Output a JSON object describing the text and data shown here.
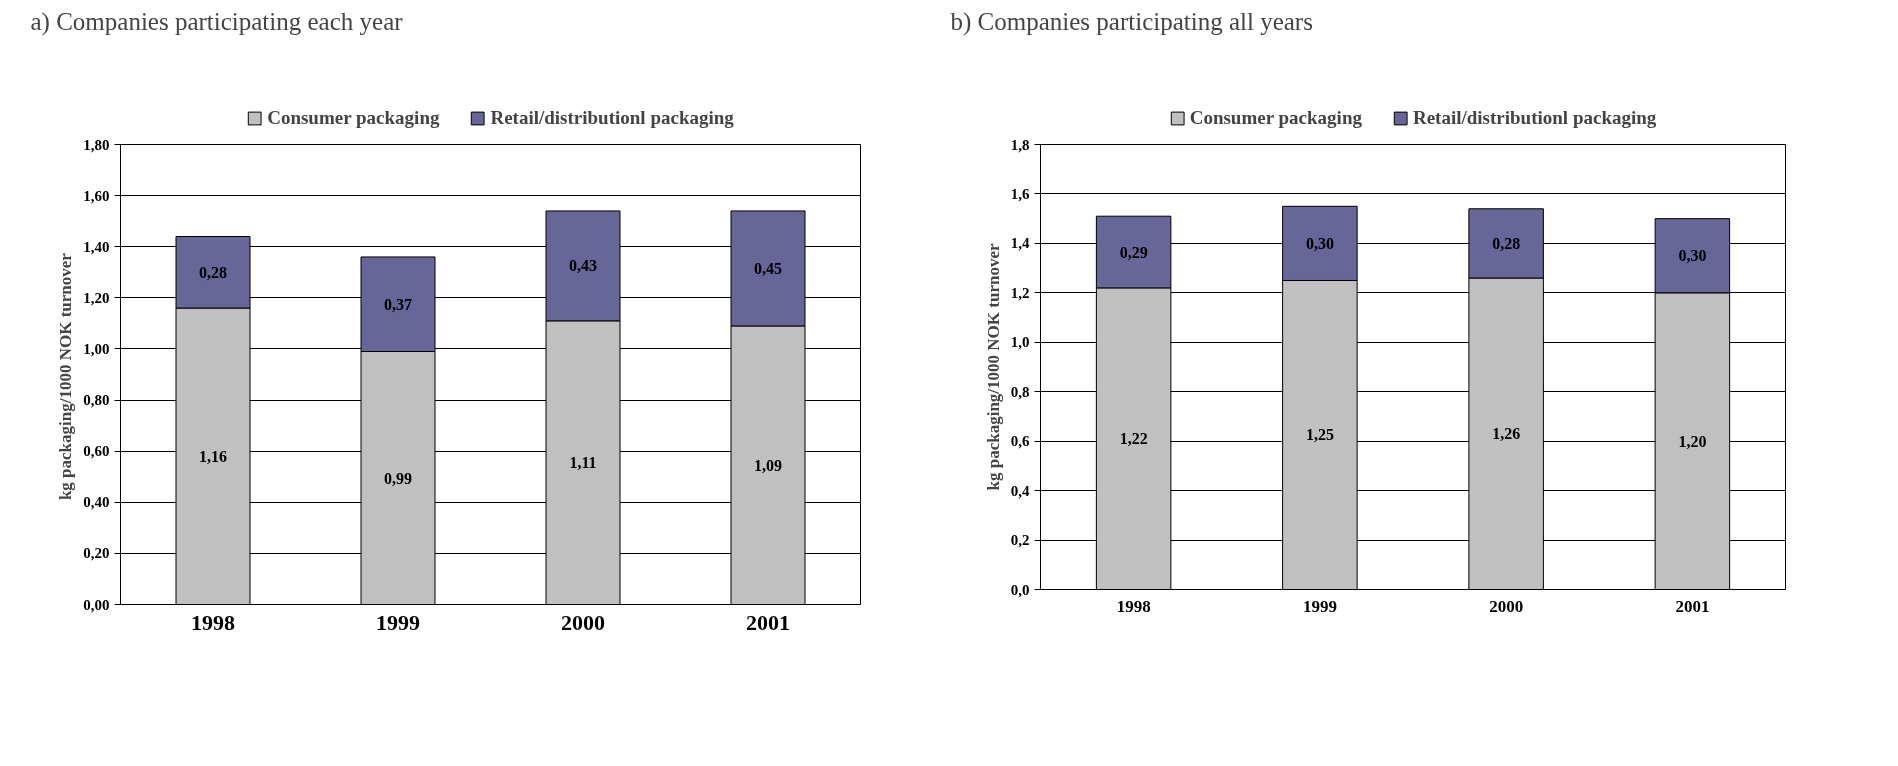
{
  "chart_data": [
    {
      "type": "bar",
      "title": "a)   Companies participating each year",
      "ylabel": "kg  packaging/1000 NOK turnover",
      "categories": [
        "1998",
        "1999",
        "2000",
        "2001"
      ],
      "stacked": true,
      "legend": "top",
      "grid": "y",
      "ylim": [
        0,
        1.8
      ],
      "yticks": [
        {
          "value": 0,
          "label": "0,00"
        },
        {
          "value": 0.2,
          "label": "0,20"
        },
        {
          "value": 0.4,
          "label": "0,40"
        },
        {
          "value": 0.6,
          "label": "0,60"
        },
        {
          "value": 0.8,
          "label": "0,80"
        },
        {
          "value": 1.0,
          "label": "1,00"
        },
        {
          "value": 1.2,
          "label": "1,20"
        },
        {
          "value": 1.4,
          "label": "1,40"
        },
        {
          "value": 1.6,
          "label": "1,60"
        },
        {
          "value": 1.8,
          "label": "1,80"
        }
      ],
      "series": [
        {
          "name": "Consumer packaging",
          "color": "#c0c0c0",
          "values": [
            1.16,
            0.99,
            1.11,
            1.09
          ],
          "value_labels": [
            "1,16",
            "0,99",
            "1,11",
            "1,09"
          ]
        },
        {
          "name": "Retail/distributionl packaging",
          "color": "#666699",
          "values": [
            0.28,
            0.37,
            0.43,
            0.45
          ],
          "value_labels": [
            "0,28",
            "0,37",
            "0,43",
            "0,45"
          ]
        }
      ]
    },
    {
      "type": "bar",
      "title": "b)  Companies participating all years",
      "ylabel": "kg packaging/1000 NOK turnover",
      "categories": [
        "1998",
        "1999",
        "2000",
        "2001"
      ],
      "stacked": true,
      "legend": "top",
      "grid": "y",
      "ylim": [
        0,
        1.8
      ],
      "yticks": [
        {
          "value": 0,
          "label": "0,0"
        },
        {
          "value": 0.2,
          "label": "0,2"
        },
        {
          "value": 0.4,
          "label": "0,4"
        },
        {
          "value": 0.6,
          "label": "0,6"
        },
        {
          "value": 0.8,
          "label": "0,8"
        },
        {
          "value": 1.0,
          "label": "1,0"
        },
        {
          "value": 1.2,
          "label": "1,2"
        },
        {
          "value": 1.4,
          "label": "1,4"
        },
        {
          "value": 1.6,
          "label": "1,6"
        },
        {
          "value": 1.8,
          "label": "1,8"
        }
      ],
      "series": [
        {
          "name": "Consumer packaging",
          "color": "#c0c0c0",
          "values": [
            1.22,
            1.25,
            1.26,
            1.2
          ],
          "value_labels": [
            "1,22",
            "1,25",
            "1,26",
            "1,20"
          ]
        },
        {
          "name": "Retail/distributionl packaging",
          "color": "#666699",
          "values": [
            0.29,
            0.3,
            0.28,
            0.3
          ],
          "value_labels": [
            "0,29",
            "0,30",
            "0,28",
            "0,30"
          ]
        }
      ]
    }
  ]
}
